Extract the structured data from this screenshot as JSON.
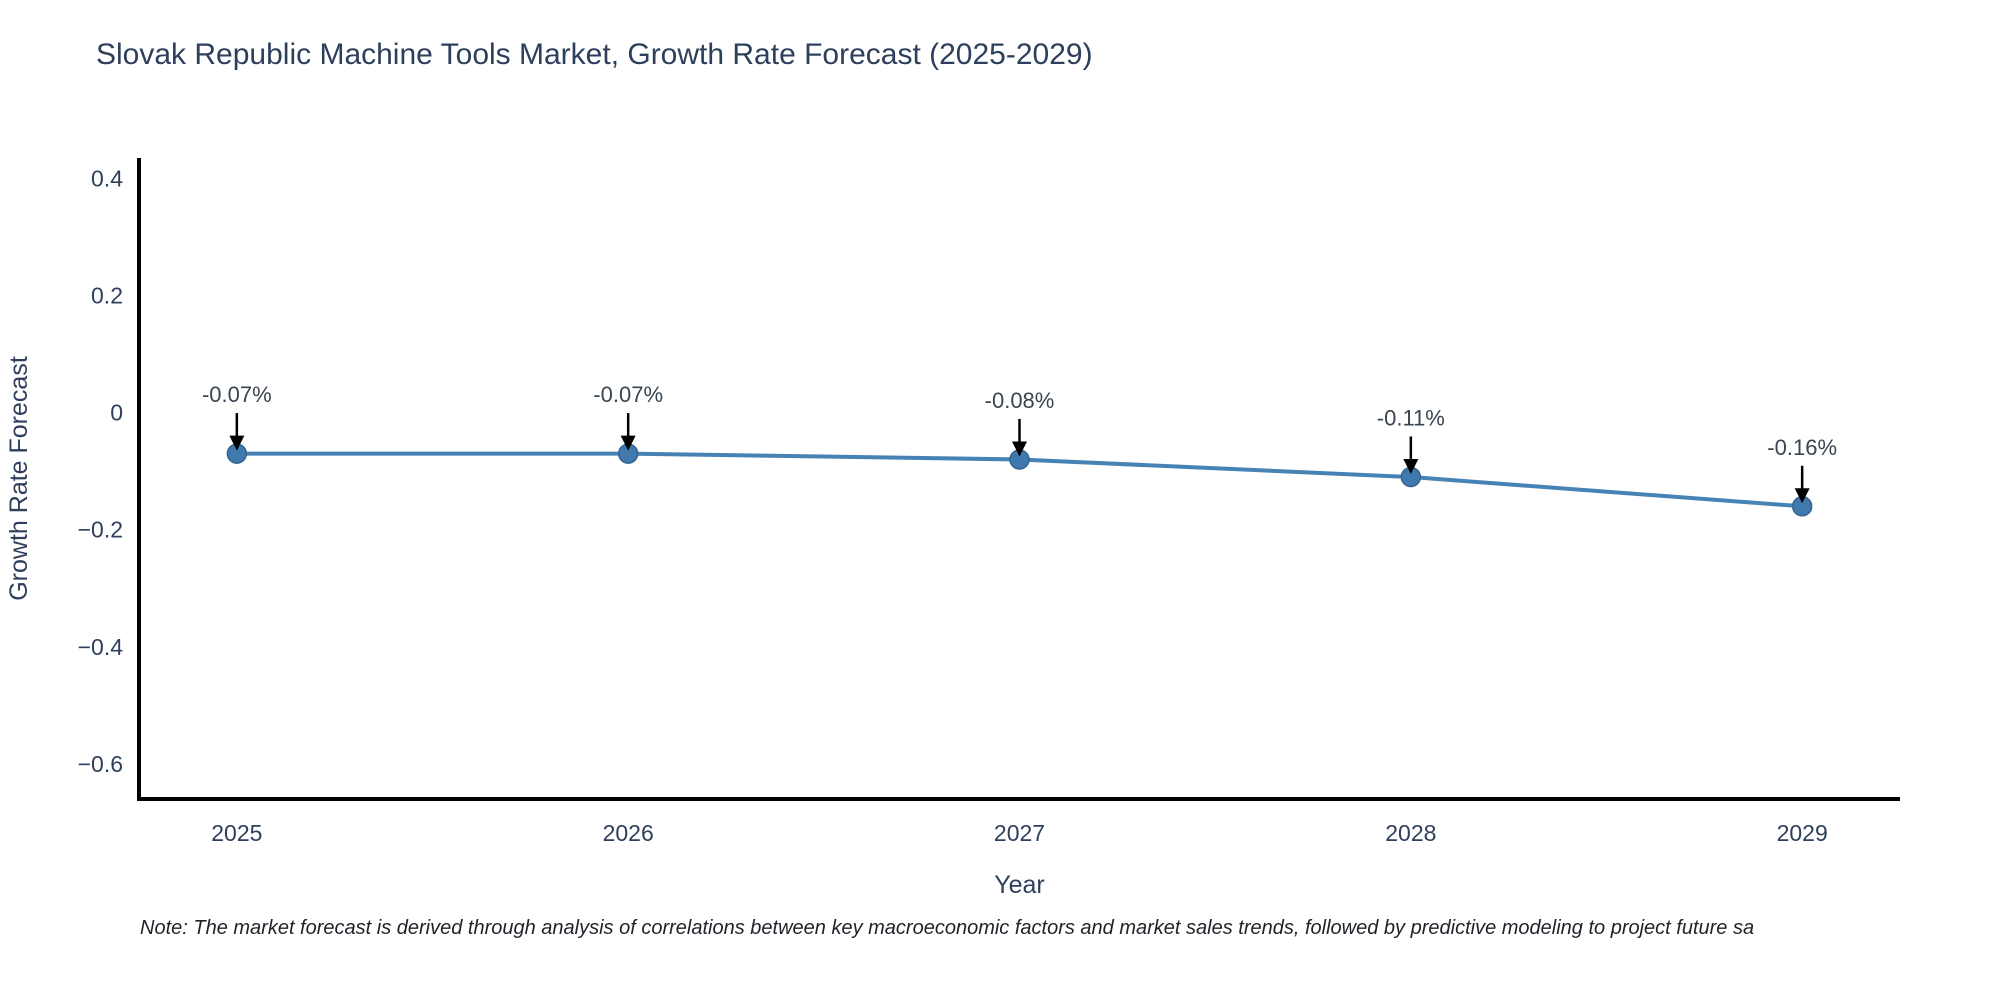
{
  "chart_data": {
    "type": "line",
    "title": "Slovak Republic Machine Tools Market, Growth Rate Forecast (2025-2029)",
    "xlabel": "Year",
    "ylabel": "Growth Rate Forecast",
    "x": [
      2025,
      2026,
      2027,
      2028,
      2029
    ],
    "values": [
      -0.07,
      -0.07,
      -0.08,
      -0.11,
      -0.16
    ],
    "point_labels": [
      "-0.07%",
      "-0.07%",
      "-0.08%",
      "-0.11%",
      "-0.16%"
    ],
    "annotation_offset_data_units": 0.1,
    "xticks": {
      "values": [
        2025,
        2026,
        2027,
        2028,
        2029
      ],
      "labels": [
        "2025",
        "2026",
        "2027",
        "2028",
        "2029"
      ]
    },
    "yticks": {
      "values": [
        0.4,
        0.2,
        0,
        -0.2,
        -0.4,
        -0.6
      ],
      "labels": [
        "0.4",
        "0.2",
        "0",
        "−0.2",
        "−0.4",
        "−0.6"
      ]
    },
    "xlim": [
      2024.75,
      2029.25
    ],
    "ylim": [
      -0.66,
      0.435
    ],
    "grid": false,
    "legend": false,
    "colors": {
      "line": "#4682b4",
      "marker_fill": "#4079ae",
      "marker_edge": "#35648f",
      "arrow": "#000000",
      "spine": "#000000",
      "axis_text": "#2e3f5c",
      "annotation_text": "#3a4552"
    }
  },
  "footer": {
    "note": "Note: The market forecast is derived through analysis of correlations between key macroeconomic factors and market sales trends, followed by predictive modeling to project future sa"
  }
}
